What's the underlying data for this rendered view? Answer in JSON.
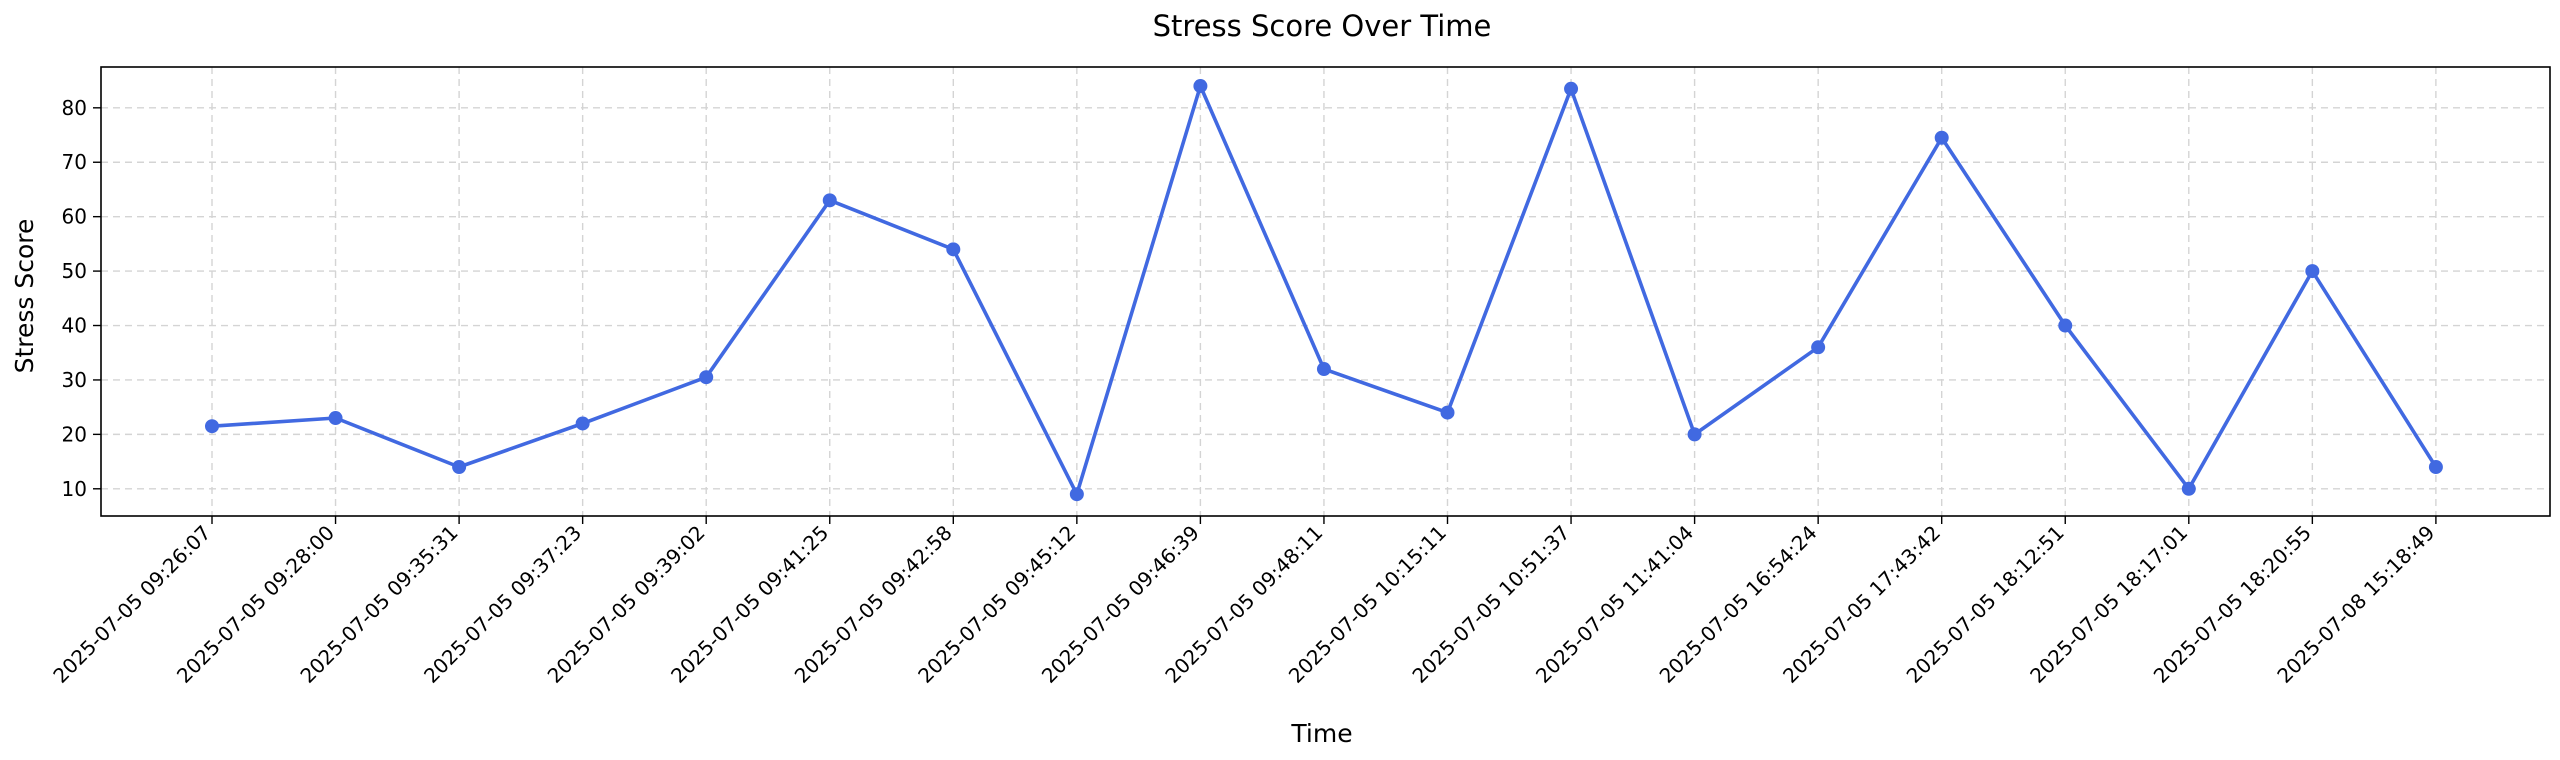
{
  "chart_data": {
    "type": "line",
    "title": "Stress Score Over Time",
    "xlabel": "Time",
    "ylabel": "Stress Score",
    "x": [
      "2025-07-05 09:26:07",
      "2025-07-05 09:28:00",
      "2025-07-05 09:35:31",
      "2025-07-05 09:37:23",
      "2025-07-05 09:39:02",
      "2025-07-05 09:41:25",
      "2025-07-05 09:42:58",
      "2025-07-05 09:45:12",
      "2025-07-05 09:46:39",
      "2025-07-05 09:48:11",
      "2025-07-05 10:15:11",
      "2025-07-05 10:51:37",
      "2025-07-05 11:41:04",
      "2025-07-05 16:54:24",
      "2025-07-05 17:43:42",
      "2025-07-05 18:12:51",
      "2025-07-05 18:17:01",
      "2025-07-05 18:20:55",
      "2025-07-08 15:18:49"
    ],
    "series": [
      {
        "values": [
          21.5,
          23,
          14,
          22,
          30.5,
          63,
          54,
          9,
          84,
          32,
          24,
          83.5,
          20,
          36,
          74.5,
          40,
          10,
          50,
          14
        ],
        "color": "#4169e1",
        "marker": "circle"
      }
    ],
    "ylim": [
      5,
      87.5
    ],
    "yticks": [
      10,
      20,
      30,
      40,
      50,
      60,
      70,
      80
    ],
    "grid": true,
    "x_axis_kind": "categorical",
    "xtick_rotation": 45
  }
}
